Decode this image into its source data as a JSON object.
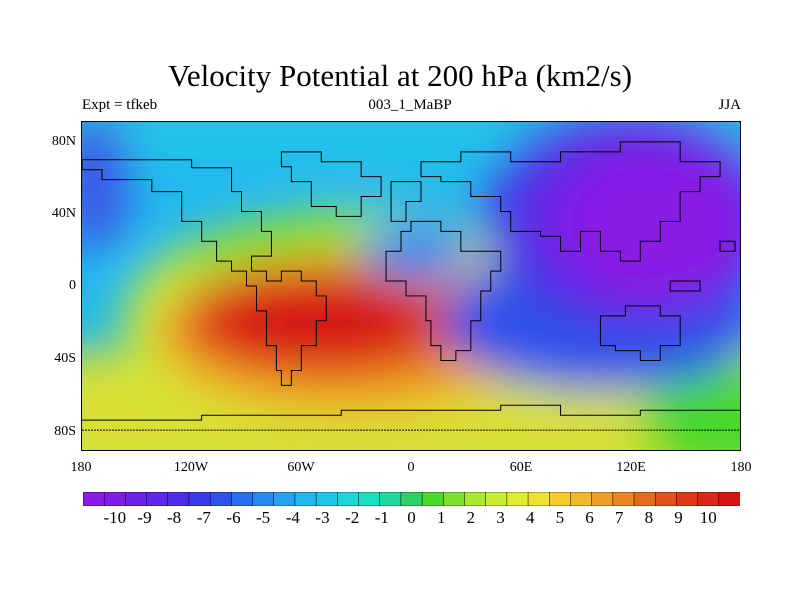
{
  "title": "Velocity Potential at 200 hPa (km2/s)",
  "subtitle_left": "Expt = tfkeb",
  "subtitle_center": "003_1_MaBP",
  "subtitle_right": "JJA",
  "map": {
    "projection": "cylindrical equidistant",
    "lon_range": [
      -180,
      180
    ],
    "lat_range": [
      -90,
      90
    ],
    "y_ticks": [
      {
        "lat": 80,
        "label": "80N"
      },
      {
        "lat": 40,
        "label": "40N"
      },
      {
        "lat": 0,
        "label": "0"
      },
      {
        "lat": -40,
        "label": "40S"
      },
      {
        "lat": -80,
        "label": "80S"
      }
    ],
    "x_ticks": [
      {
        "lon": -180,
        "label": "180"
      },
      {
        "lon": -120,
        "label": "120W"
      },
      {
        "lon": -60,
        "label": "60W"
      },
      {
        "lon": 0,
        "label": "0"
      },
      {
        "lon": 60,
        "label": "60E"
      },
      {
        "lon": 120,
        "label": "120E"
      },
      {
        "lon": 180,
        "label": "180"
      }
    ],
    "features": [
      {
        "name": "max-over-south-america-south-atlantic",
        "lon": -45,
        "lat": -25,
        "value": 10
      },
      {
        "name": "min-over-asia-west-pacific",
        "lon": 120,
        "lat": 30,
        "value": -10
      }
    ],
    "coastline_color": "#000000"
  },
  "colorbar": {
    "labels": [
      "-10",
      "-9",
      "-8",
      "-7",
      "-6",
      "-5",
      "-4",
      "-3",
      "-2",
      "-1",
      "0",
      "1",
      "2",
      "3",
      "4",
      "5",
      "6",
      "7",
      "8",
      "9",
      "10"
    ],
    "colors": [
      "#8b1ae6",
      "#7d1ee6",
      "#6e22e6",
      "#5e26e6",
      "#4a2de6",
      "#3a3ae6",
      "#2f52ea",
      "#2a6eee",
      "#278af0",
      "#24a2f0",
      "#20b6ee",
      "#1ec7e6",
      "#1ed6d6",
      "#1edcc0",
      "#20d898",
      "#2ed264",
      "#4ad82c",
      "#7ee02a",
      "#a8e830",
      "#c8ec34",
      "#e0ec32",
      "#eee030",
      "#f2cc2c",
      "#f0b82a",
      "#ee9e26",
      "#ea8422",
      "#e66a1e",
      "#e2521c",
      "#de3a18",
      "#da2616",
      "#d61414"
    ]
  }
}
